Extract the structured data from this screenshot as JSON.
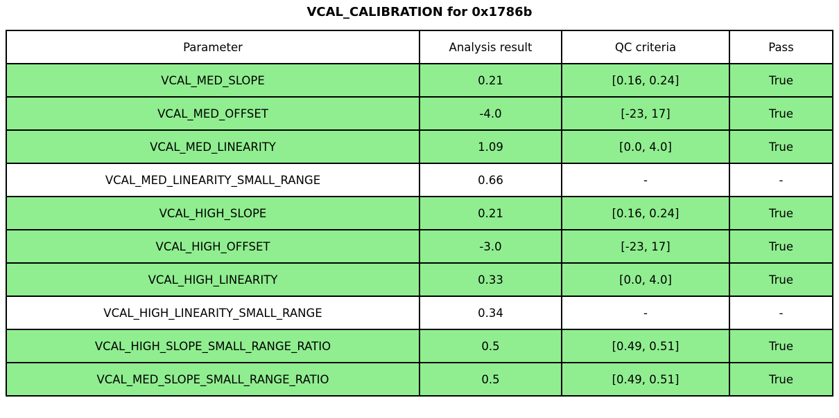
{
  "title": "VCAL_CALIBRATION for 0x1786b",
  "colors": {
    "highlight_green": "#90EE90",
    "row_default": "#FFFFFF",
    "border": "#000000",
    "background": "#FFFFFF"
  },
  "chart_data": {
    "type": "table",
    "title": "VCAL_CALIBRATION for 0x1786b",
    "columns": [
      "Parameter",
      "Analysis result",
      "QC criteria",
      "Pass"
    ],
    "rows": [
      {
        "cells": [
          "VCAL_MED_SLOPE",
          "0.21",
          "[0.16, 0.24]",
          "True"
        ],
        "highlight": true
      },
      {
        "cells": [
          "VCAL_MED_OFFSET",
          "-4.0",
          "[-23, 17]",
          "True"
        ],
        "highlight": true
      },
      {
        "cells": [
          "VCAL_MED_LINEARITY",
          "1.09",
          "[0.0, 4.0]",
          "True"
        ],
        "highlight": true
      },
      {
        "cells": [
          "VCAL_MED_LINEARITY_SMALL_RANGE",
          "0.66",
          "-",
          "-"
        ],
        "highlight": false
      },
      {
        "cells": [
          "VCAL_HIGH_SLOPE",
          "0.21",
          "[0.16, 0.24]",
          "True"
        ],
        "highlight": true
      },
      {
        "cells": [
          "VCAL_HIGH_OFFSET",
          "-3.0",
          "[-23, 17]",
          "True"
        ],
        "highlight": true
      },
      {
        "cells": [
          "VCAL_HIGH_LINEARITY",
          "0.33",
          "[0.0, 4.0]",
          "True"
        ],
        "highlight": true
      },
      {
        "cells": [
          "VCAL_HIGH_LINEARITY_SMALL_RANGE",
          "0.34",
          "-",
          "-"
        ],
        "highlight": false
      },
      {
        "cells": [
          "VCAL_HIGH_SLOPE_SMALL_RANGE_RATIO",
          "0.5",
          "[0.49, 0.51]",
          "True"
        ],
        "highlight": true
      },
      {
        "cells": [
          "VCAL_MED_SLOPE_SMALL_RANGE_RATIO",
          "0.5",
          "[0.49, 0.51]",
          "True"
        ],
        "highlight": true
      }
    ],
    "row_highlight_color": "#90EE90",
    "layout": {
      "grid": true,
      "header_background": "#FFFFFF",
      "text_align": "center"
    }
  }
}
